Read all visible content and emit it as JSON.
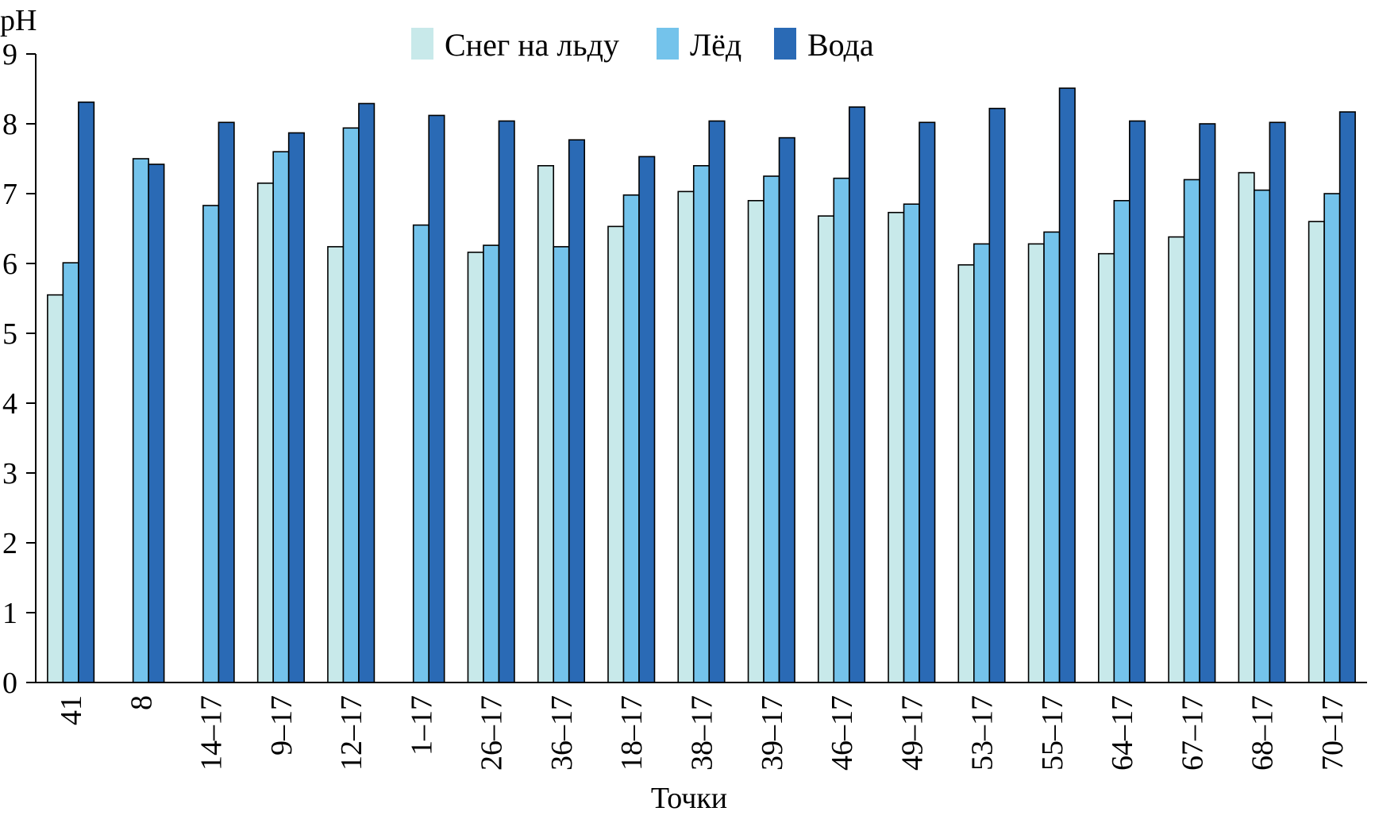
{
  "chart_data": {
    "type": "bar",
    "title": "",
    "xlabel": "Точки",
    "ylabel": "pH",
    "ylim": [
      0,
      9
    ],
    "yticks": [
      0,
      1,
      2,
      3,
      4,
      5,
      6,
      7,
      8,
      9
    ],
    "grid": false,
    "legend_position": "top-center",
    "categories": [
      "41",
      "8",
      "14–17",
      "9–17",
      "12–17",
      "1–17",
      "26–17",
      "36–17",
      "18–17",
      "38–17",
      "39–17",
      "46–17",
      "49–17",
      "53–17",
      "55–17",
      "64–17",
      "67–17",
      "68–17",
      "70–17"
    ],
    "series": [
      {
        "name": "Снег на льду",
        "color": "#c8e9ea",
        "values": [
          5.55,
          null,
          null,
          7.15,
          6.24,
          null,
          6.16,
          7.4,
          6.53,
          7.03,
          6.9,
          6.68,
          6.73,
          5.98,
          6.28,
          6.14,
          6.38,
          7.3,
          6.6
        ]
      },
      {
        "name": "Лёд",
        "color": "#74c3eb",
        "values": [
          6.01,
          7.5,
          6.83,
          7.6,
          7.94,
          6.55,
          6.26,
          6.24,
          6.98,
          7.4,
          7.25,
          7.22,
          6.85,
          6.28,
          6.45,
          6.9,
          7.2,
          7.05,
          7.0
        ]
      },
      {
        "name": "Вода",
        "color": "#2a6ab5",
        "values": [
          8.31,
          7.42,
          8.02,
          7.87,
          8.29,
          8.12,
          8.04,
          7.77,
          7.53,
          8.04,
          7.8,
          8.24,
          8.02,
          8.22,
          8.51,
          8.04,
          8.0,
          8.02,
          8.17
        ]
      }
    ]
  }
}
